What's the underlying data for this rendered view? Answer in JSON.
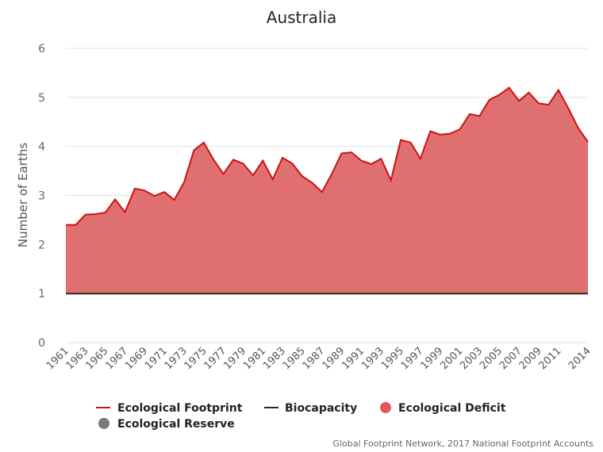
{
  "colors": {
    "footprint": "#cc1111",
    "biocapacity": "#2b2b12",
    "deficit": "#e07070",
    "deficit_marker": "#e05a5a",
    "reserve_marker": "#7a7a7a",
    "grid": "#e3e3e3"
  },
  "chart_data": {
    "type": "area",
    "title": "Australia",
    "ylabel": "Number of Earths",
    "xlabel": "",
    "ylim": [
      0,
      6
    ],
    "yticks": [
      0,
      1,
      2,
      3,
      4,
      5,
      6
    ],
    "xlim": [
      1961,
      2014
    ],
    "xticks": [
      1961,
      1963,
      1965,
      1967,
      1969,
      1971,
      1973,
      1975,
      1977,
      1979,
      1981,
      1983,
      1985,
      1987,
      1989,
      1991,
      1993,
      1995,
      1997,
      1999,
      2001,
      2003,
      2005,
      2007,
      2009,
      2011,
      2014
    ],
    "grid": true,
    "legend_placement": "bottom",
    "x": [
      1961,
      1962,
      1963,
      1964,
      1965,
      1966,
      1967,
      1968,
      1969,
      1970,
      1971,
      1972,
      1973,
      1974,
      1975,
      1976,
      1977,
      1978,
      1979,
      1980,
      1981,
      1982,
      1983,
      1984,
      1985,
      1986,
      1987,
      1988,
      1989,
      1990,
      1991,
      1992,
      1993,
      1994,
      1995,
      1996,
      1997,
      1998,
      1999,
      2000,
      2001,
      2002,
      2003,
      2004,
      2005,
      2006,
      2007,
      2008,
      2009,
      2010,
      2011,
      2012,
      2013,
      2014
    ],
    "series": [
      {
        "name": "Ecological Footprint",
        "values": [
          2.4,
          2.4,
          2.61,
          2.62,
          2.65,
          2.92,
          2.66,
          3.14,
          3.1,
          2.99,
          3.07,
          2.91,
          3.27,
          3.92,
          4.08,
          3.73,
          3.44,
          3.73,
          3.65,
          3.41,
          3.71,
          3.33,
          3.77,
          3.65,
          3.39,
          3.26,
          3.07,
          3.44,
          3.86,
          3.88,
          3.71,
          3.64,
          3.75,
          3.31,
          4.13,
          4.08,
          3.75,
          4.31,
          4.24,
          4.26,
          4.35,
          4.66,
          4.62,
          4.95,
          5.05,
          5.2,
          4.93,
          5.1,
          4.88,
          4.85,
          5.15,
          4.78,
          4.38,
          4.09
        ]
      },
      {
        "name": "Biocapacity",
        "values": [
          1,
          1,
          1,
          1,
          1,
          1,
          1,
          1,
          1,
          1,
          1,
          1,
          1,
          1,
          1,
          1,
          1,
          1,
          1,
          1,
          1,
          1,
          1,
          1,
          1,
          1,
          1,
          1,
          1,
          1,
          1,
          1,
          1,
          1,
          1,
          1,
          1,
          1,
          1,
          1,
          1,
          1,
          1,
          1,
          1,
          1,
          1,
          1,
          1,
          1,
          1,
          1,
          1,
          1
        ]
      }
    ],
    "legend": [
      "Ecological Footprint",
      "Biocapacity",
      "Ecological Deficit",
      "Ecological Reserve"
    ]
  },
  "credit": "Global Footprint Network, 2017 National Footprint Accounts"
}
